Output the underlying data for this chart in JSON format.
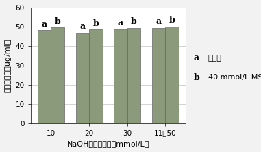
{
  "groups": [
    "10",
    "20",
    "30",
    "11～50"
  ],
  "bar_a_values": [
    48.2,
    47.0,
    48.8,
    49.5
  ],
  "bar_b_values": [
    49.8,
    48.5,
    49.5,
    50.2
  ],
  "bar_color": "#8a9a7a",
  "bar_width": 0.35,
  "ylim": [
    0,
    60
  ],
  "yticks": [
    0,
    10,
    20,
    30,
    40,
    50,
    60
  ],
  "ylabel": "草酸产生量（ug/ml）",
  "xlabel": "NaOH淤洗液浓度（mmol/L）",
  "legend_a_label": "水基所",
  "legend_b_label": "40 mmol/L MSA",
  "background_color": "#f2f2f2",
  "plot_bg_color": "#ffffff",
  "label_a": "a",
  "label_b": "b",
  "tick_fontsize": 7.5,
  "axis_label_fontsize": 8,
  "bar_label_fontsize": 9,
  "legend_fontsize": 8
}
